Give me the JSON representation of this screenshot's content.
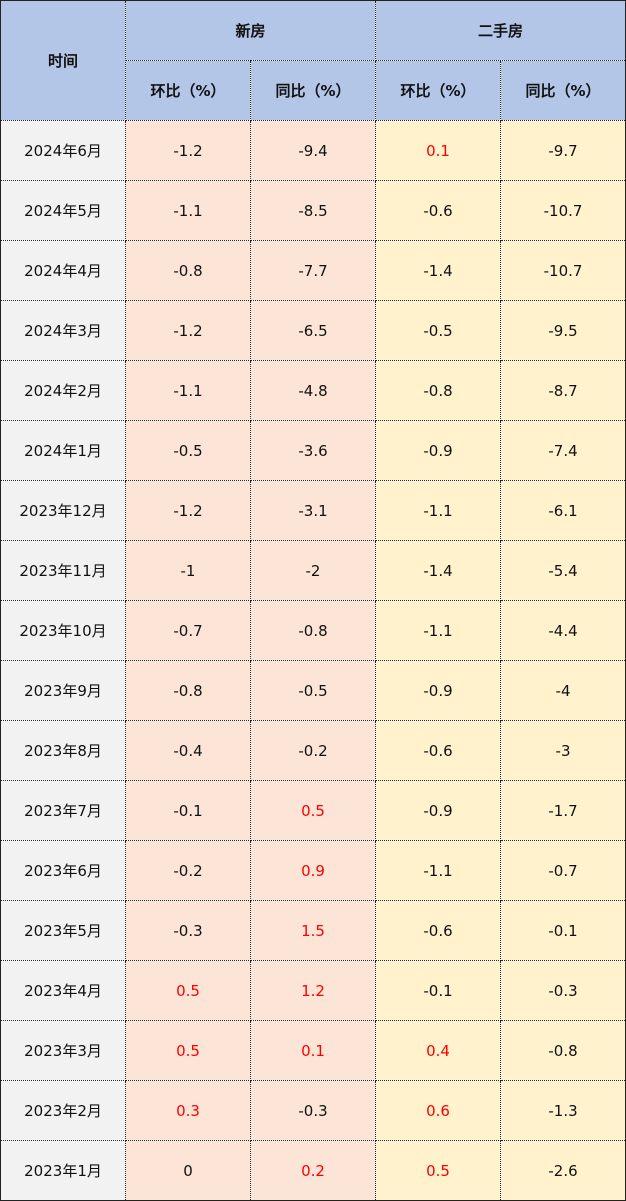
{
  "header": {
    "time": "时间",
    "new_homes": "新房",
    "resale_homes": "二手房",
    "mom": "环比（%）",
    "yoy": "同比（%）"
  },
  "rows": [
    {
      "month": "2024年6月",
      "new_mom": "-1.2",
      "new_yoy": "-9.4",
      "resale_mom": "0.1",
      "resale_yoy": "-9.7"
    },
    {
      "month": "2024年5月",
      "new_mom": "-1.1",
      "new_yoy": "-8.5",
      "resale_mom": "-0.6",
      "resale_yoy": "-10.7"
    },
    {
      "month": "2024年4月",
      "new_mom": "-0.8",
      "new_yoy": "-7.7",
      "resale_mom": "-1.4",
      "resale_yoy": "-10.7"
    },
    {
      "month": "2024年3月",
      "new_mom": "-1.2",
      "new_yoy": "-6.5",
      "resale_mom": "-0.5",
      "resale_yoy": "-9.5"
    },
    {
      "month": "2024年2月",
      "new_mom": "-1.1",
      "new_yoy": "-4.8",
      "resale_mom": "-0.8",
      "resale_yoy": "-8.7"
    },
    {
      "month": "2024年1月",
      "new_mom": "-0.5",
      "new_yoy": "-3.6",
      "resale_mom": "-0.9",
      "resale_yoy": "-7.4"
    },
    {
      "month": "2023年12月",
      "new_mom": "-1.2",
      "new_yoy": "-3.1",
      "resale_mom": "-1.1",
      "resale_yoy": "-6.1"
    },
    {
      "month": "2023年11月",
      "new_mom": "-1",
      "new_yoy": "-2",
      "resale_mom": "-1.4",
      "resale_yoy": "-5.4"
    },
    {
      "month": "2023年10月",
      "new_mom": "-0.7",
      "new_yoy": "-0.8",
      "resale_mom": "-1.1",
      "resale_yoy": "-4.4"
    },
    {
      "month": "2023年9月",
      "new_mom": "-0.8",
      "new_yoy": "-0.5",
      "resale_mom": "-0.9",
      "resale_yoy": "-4"
    },
    {
      "month": "2023年8月",
      "new_mom": "-0.4",
      "new_yoy": "-0.2",
      "resale_mom": "-0.6",
      "resale_yoy": "-3"
    },
    {
      "month": "2023年7月",
      "new_mom": "-0.1",
      "new_yoy": "0.5",
      "resale_mom": "-0.9",
      "resale_yoy": "-1.7"
    },
    {
      "month": "2023年6月",
      "new_mom": "-0.2",
      "new_yoy": "0.9",
      "resale_mom": "-1.1",
      "resale_yoy": "-0.7"
    },
    {
      "month": "2023年5月",
      "new_mom": "-0.3",
      "new_yoy": "1.5",
      "resale_mom": "-0.6",
      "resale_yoy": "-0.1"
    },
    {
      "month": "2023年4月",
      "new_mom": "0.5",
      "new_yoy": "1.2",
      "resale_mom": "-0.1",
      "resale_yoy": "-0.3"
    },
    {
      "month": "2023年3月",
      "new_mom": "0.5",
      "new_yoy": "0.1",
      "resale_mom": "0.4",
      "resale_yoy": "-0.8"
    },
    {
      "month": "2023年2月",
      "new_mom": "0.3",
      "new_yoy": "-0.3",
      "resale_mom": "0.6",
      "resale_yoy": "-1.3"
    },
    {
      "month": "2023年1月",
      "new_mom": "0",
      "new_yoy": "0.2",
      "resale_mom": "0.5",
      "resale_yoy": "-2.6"
    }
  ],
  "colors": {
    "header_bg": "#b4c6e7",
    "time_bg": "#f2f2f2",
    "new_bg": "#fce4d6",
    "resale_bg": "#fff2cc",
    "positive_text": "#ff0000",
    "default_text": "#111111"
  }
}
